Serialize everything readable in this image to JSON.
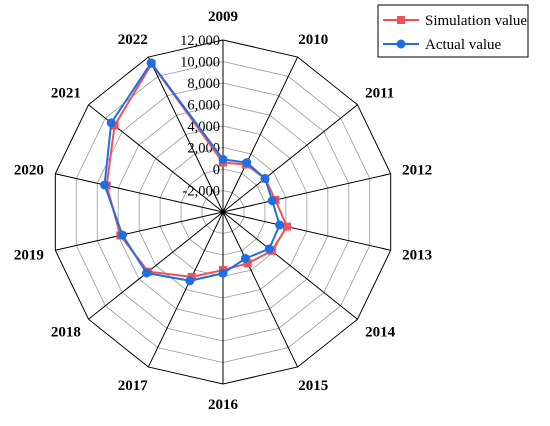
{
  "chart_data": {
    "type": "radar",
    "categories": [
      "2009",
      "2010",
      "2011",
      "2012",
      "2013",
      "2014",
      "2015",
      "2016",
      "2017",
      "2018",
      "2019",
      "2020",
      "2021",
      "2022"
    ],
    "rlim": [
      -4000,
      12000
    ],
    "ticks": [
      -2000,
      0,
      2000,
      4000,
      6000,
      8000,
      10000,
      12000
    ],
    "tick_labels": [
      "-2,000",
      "0",
      "2,000",
      "4,000",
      "6,000",
      "8,000",
      "10,000",
      "12,000"
    ],
    "series": [
      {
        "name": "Simulation value",
        "color": "#f0505a",
        "marker": "square",
        "values": [
          600,
          900,
          1000,
          1000,
          2100,
          1800,
          1300,
          1400,
          2700,
          4900,
          5800,
          7100,
          8900,
          11300
        ]
      },
      {
        "name": "Actual value",
        "color": "#1f6fe0",
        "marker": "circle",
        "values": [
          900,
          1100,
          1000,
          700,
          1400,
          1500,
          800,
          1700,
          3100,
          5100,
          5600,
          7300,
          9300,
          11400
        ]
      }
    ],
    "grid": true,
    "legend": "top-right"
  }
}
